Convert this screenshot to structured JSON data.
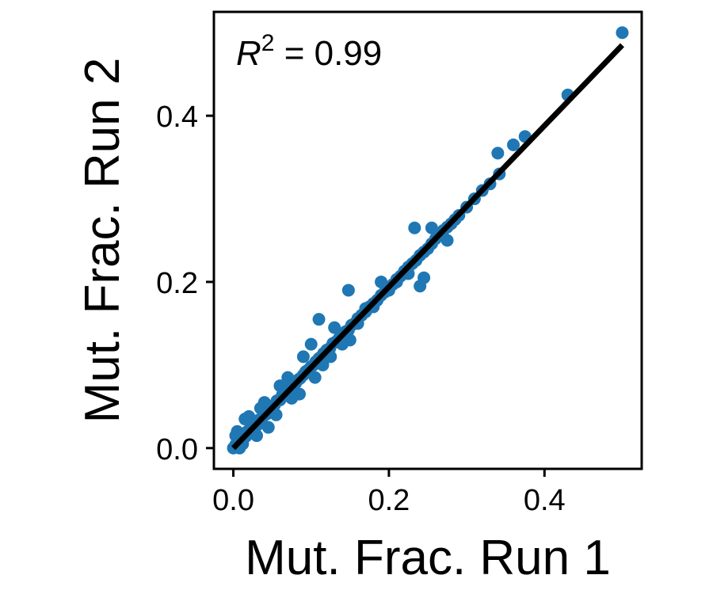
{
  "chart_data": {
    "type": "scatter",
    "title": "",
    "xlabel": "Mut. Frac. Run 1",
    "ylabel": "Mut. Frac. Run 2",
    "xlim": [
      -0.025,
      0.525
    ],
    "ylim": [
      -0.025,
      0.525
    ],
    "xticks": [
      "0.0",
      "0.2",
      "0.4"
    ],
    "yticks": [
      "0.0",
      "0.2",
      "0.4"
    ],
    "xtick_values": [
      0.0,
      0.2,
      0.4
    ],
    "ytick_values": [
      0.0,
      0.2,
      0.4
    ],
    "point_color": "#1f77b4",
    "line_color": "#000000",
    "annotation": {
      "r_symbol": "R",
      "r_exponent": "2",
      "equals_text": " = 0.99"
    },
    "fit_line": {
      "x": [
        0.0,
        0.5
      ],
      "y": [
        0.0,
        0.485
      ]
    },
    "points": {
      "x": [
        0.0,
        0.003,
        0.005,
        0.007,
        0.009,
        0.01,
        0.012,
        0.014,
        0.016,
        0.018,
        0.02,
        0.022,
        0.025,
        0.028,
        0.03,
        0.033,
        0.036,
        0.04,
        0.043,
        0.046,
        0.05,
        0.053,
        0.056,
        0.06,
        0.063,
        0.066,
        0.07,
        0.073,
        0.076,
        0.08,
        0.083,
        0.086,
        0.09,
        0.093,
        0.096,
        0.1,
        0.103,
        0.106,
        0.11,
        0.113,
        0.116,
        0.12,
        0.124,
        0.128,
        0.132,
        0.136,
        0.14,
        0.144,
        0.148,
        0.152,
        0.156,
        0.16,
        0.165,
        0.17,
        0.175,
        0.18,
        0.185,
        0.19,
        0.195,
        0.2,
        0.205,
        0.21,
        0.215,
        0.22,
        0.225,
        0.23,
        0.235,
        0.24,
        0.245,
        0.25,
        0.255,
        0.26,
        0.265,
        0.27,
        0.275,
        0.28,
        0.285,
        0.29,
        0.3,
        0.31,
        0.32,
        0.33,
        0.34,
        0.36,
        0.375,
        0.43,
        0.5,
        0.005,
        0.012,
        0.02,
        0.03,
        0.04,
        0.055,
        0.07,
        0.085,
        0.1,
        0.115,
        0.13,
        0.15,
        0.17,
        0.19,
        0.21,
        0.233,
        0.245,
        0.24,
        0.148,
        0.11,
        0.09,
        0.06,
        0.035,
        0.015,
        0.003,
        0.008,
        0.045,
        0.075,
        0.105,
        0.125,
        0.14,
        0.16,
        0.18,
        0.2,
        0.225,
        0.255,
        0.275,
        0.342
      ],
      "y": [
        0.0,
        0.004,
        0.006,
        0.005,
        0.012,
        0.008,
        0.013,
        0.016,
        0.014,
        0.02,
        0.019,
        0.024,
        0.023,
        0.03,
        0.027,
        0.034,
        0.033,
        0.04,
        0.041,
        0.045,
        0.05,
        0.052,
        0.057,
        0.058,
        0.064,
        0.063,
        0.07,
        0.072,
        0.075,
        0.078,
        0.082,
        0.084,
        0.088,
        0.092,
        0.094,
        0.098,
        0.1,
        0.104,
        0.108,
        0.11,
        0.114,
        0.118,
        0.12,
        0.126,
        0.128,
        0.132,
        0.136,
        0.14,
        0.142,
        0.148,
        0.15,
        0.156,
        0.16,
        0.164,
        0.17,
        0.174,
        0.178,
        0.184,
        0.188,
        0.193,
        0.197,
        0.203,
        0.207,
        0.213,
        0.218,
        0.222,
        0.226,
        0.232,
        0.236,
        0.24,
        0.246,
        0.252,
        0.256,
        0.262,
        0.266,
        0.27,
        0.275,
        0.28,
        0.29,
        0.3,
        0.31,
        0.318,
        0.355,
        0.365,
        0.375,
        0.425,
        0.5,
        0.02,
        0.005,
        0.038,
        0.015,
        0.055,
        0.04,
        0.085,
        0.065,
        0.125,
        0.1,
        0.145,
        0.13,
        0.168,
        0.2,
        0.2,
        0.265,
        0.205,
        0.195,
        0.19,
        0.155,
        0.11,
        0.075,
        0.048,
        0.035,
        0.015,
        0.0,
        0.025,
        0.06,
        0.085,
        0.11,
        0.125,
        0.15,
        0.17,
        0.19,
        0.21,
        0.265,
        0.25,
        0.33
      ]
    }
  }
}
